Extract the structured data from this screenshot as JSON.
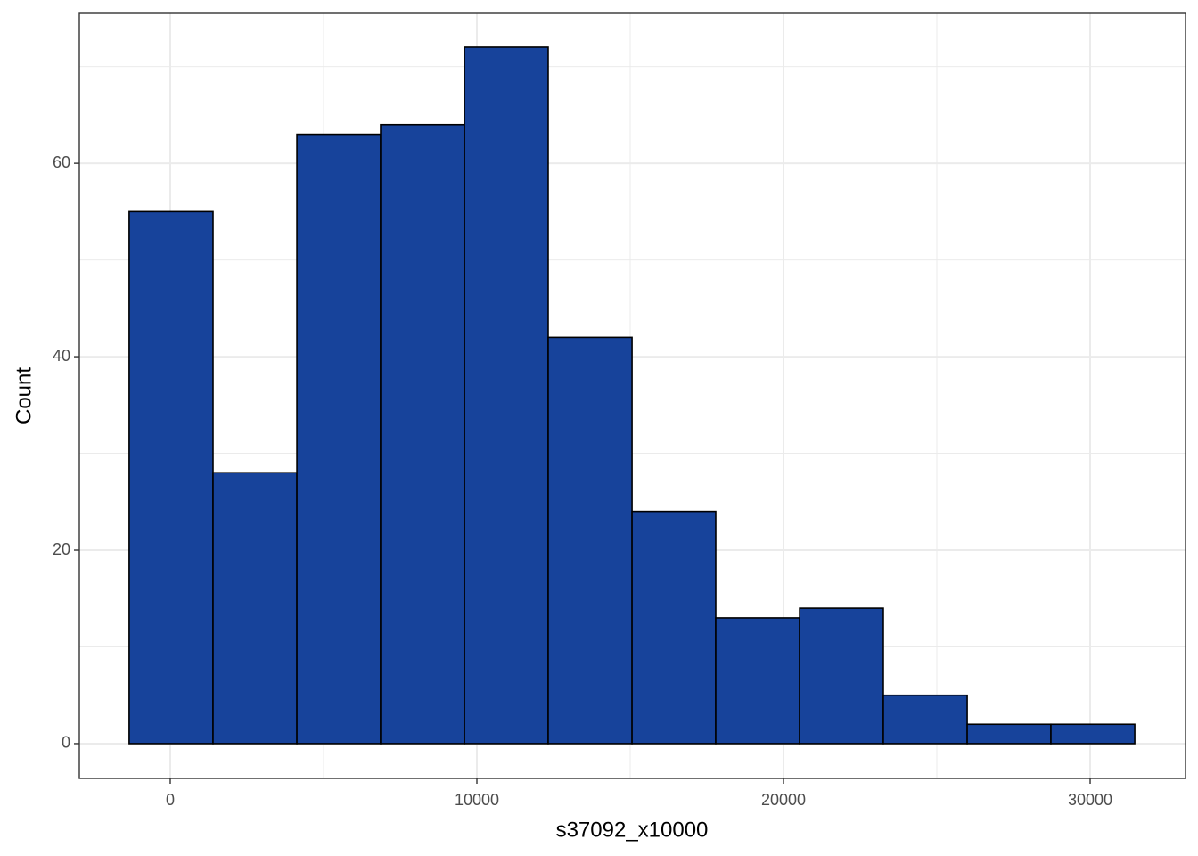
{
  "chart_data": {
    "type": "histogram",
    "x_label": "s37092_x10000",
    "y_label": "Count",
    "bins": [
      -1340,
      1395,
      4130,
      6860,
      9595,
      12325,
      15060,
      17790,
      20525,
      23255,
      25990,
      28720,
      31455
    ],
    "values": [
      55,
      28,
      63,
      64,
      72,
      42,
      24,
      13,
      14,
      5,
      2,
      2
    ],
    "color": "#17439b",
    "edge_color": "#000000",
    "xlim": [
      -2965,
      33110
    ],
    "ylim": [
      -3.6,
      75.5
    ],
    "xticks": [
      0,
      10000,
      20000,
      30000
    ],
    "yticks": [
      0,
      20,
      40,
      60
    ],
    "x_minor_grid": [
      5000,
      15000,
      25000
    ],
    "y_minor_grid": [
      10,
      30,
      50,
      70
    ],
    "grid": true
  }
}
